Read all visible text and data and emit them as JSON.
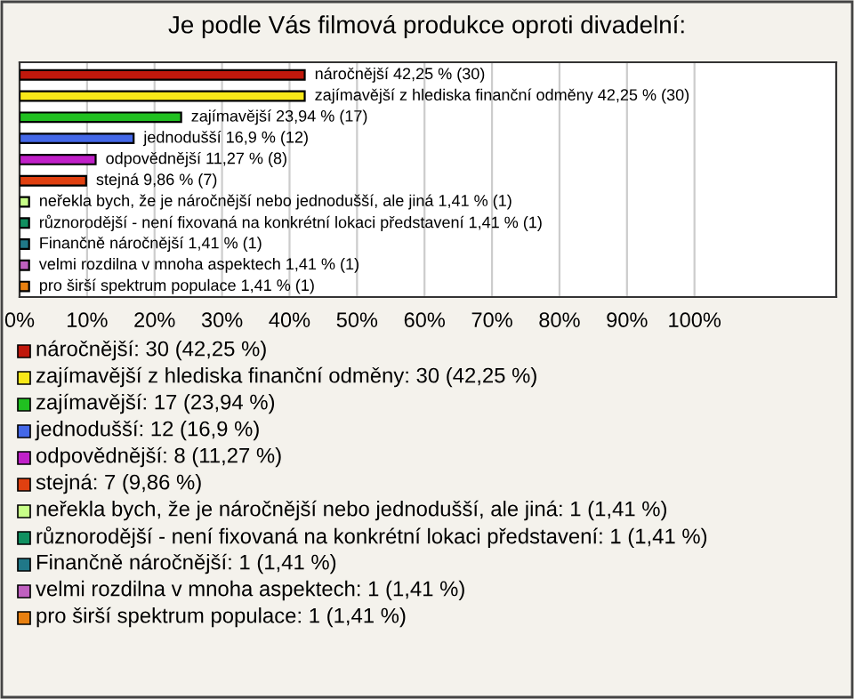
{
  "chart_data": {
    "type": "bar",
    "orientation": "horizontal",
    "title": "Je podle Vás filmová produkce oproti divadelní:",
    "categories": [
      "náročnější 42,25 % (30)",
      "zajímavější z hlediska finanční odměny 42,25 % (30)",
      "zajímavější 23,94 % (17)",
      "jednodušší 16,9 % (12)",
      "odpovědnější 11,27 % (8)",
      "stejná 9,86 % (7)",
      "neřekla bych, že je náročnější nebo jednodušší, ale jiná 1,41 % (1)",
      "různorodější - není fixovaná na konkrétní lokaci představení 1,41 % (1)",
      "Finančně náročnější 1,41 % (1)",
      "velmi rozdilna v mnoha aspektech 1,41 % (1)",
      "pro širší spektrum populace 1,41 % (1)"
    ],
    "values": [
      42.25,
      42.25,
      23.94,
      16.9,
      11.27,
      9.86,
      1.41,
      1.41,
      1.41,
      1.41,
      1.41
    ],
    "colors": [
      "#c0180c",
      "#f8e818",
      "#20c020",
      "#4468e8",
      "#c020c8",
      "#e04010",
      "#c8ff88",
      "#109060",
      "#207888",
      "#c060c0",
      "#e88010"
    ],
    "xlim": [
      0,
      121
    ],
    "xticks": [
      {
        "value": 0,
        "label": "0%"
      },
      {
        "value": 10,
        "label": "10%"
      },
      {
        "value": 20,
        "label": "20%"
      },
      {
        "value": 30,
        "label": "30%"
      },
      {
        "value": 40,
        "label": "40%"
      },
      {
        "value": 50,
        "label": "50%"
      },
      {
        "value": 60,
        "label": "60%"
      },
      {
        "value": 70,
        "label": "70%"
      },
      {
        "value": 80,
        "label": "80%"
      },
      {
        "value": 90,
        "label": "90%"
      },
      {
        "value": 100,
        "label": "100%"
      }
    ],
    "grid": "x",
    "tick_labels": "x",
    "annotations": [
      "náročnější: 30 (42,25 %)",
      "zajímavější z hlediska finanční odměny: 30 (42,25 %)",
      "zajímavější: 17 (23,94 %)",
      "jednodušší: 12 (16,9 %)",
      "odpovědnější: 8 (11,27 %)",
      "stejná: 7 (9,86 %)",
      "neřekla bych, že je náročnější nebo jednodušší, ale jiná: 1 (1,41 %)",
      "různorodější - není fixovaná na konkrétní lokaci představení: 1 (1,41 %)",
      "Finančně náročnější: 1 (1,41 %)",
      "velmi rozdilna v mnoha aspektech: 1 (1,41 %)",
      "pro širší spektrum populace: 1 (1,41 %)"
    ]
  }
}
